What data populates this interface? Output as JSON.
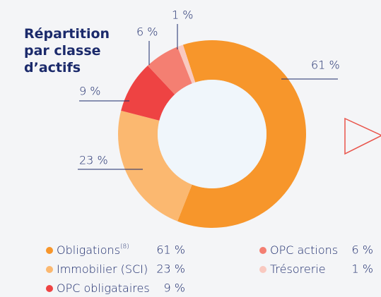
{
  "chart_data": {
    "type": "donut",
    "title": "Répartition par classe d’actifs",
    "categories": [
      "Obligations",
      "Immobilier (SCI)",
      "OPC obligataires",
      "OPC actions",
      "Trésorerie"
    ],
    "category_notes": [
      "(8)",
      null,
      null,
      null,
      null
    ],
    "values": [
      61,
      23,
      9,
      6,
      1
    ],
    "value_labels": [
      "61 %",
      "23 %",
      "9 %",
      "6 %",
      "1 %"
    ],
    "colors": [
      "#f7962b",
      "#fbb870",
      "#ee4343",
      "#f47f72",
      "#f9c9c0"
    ]
  }
}
